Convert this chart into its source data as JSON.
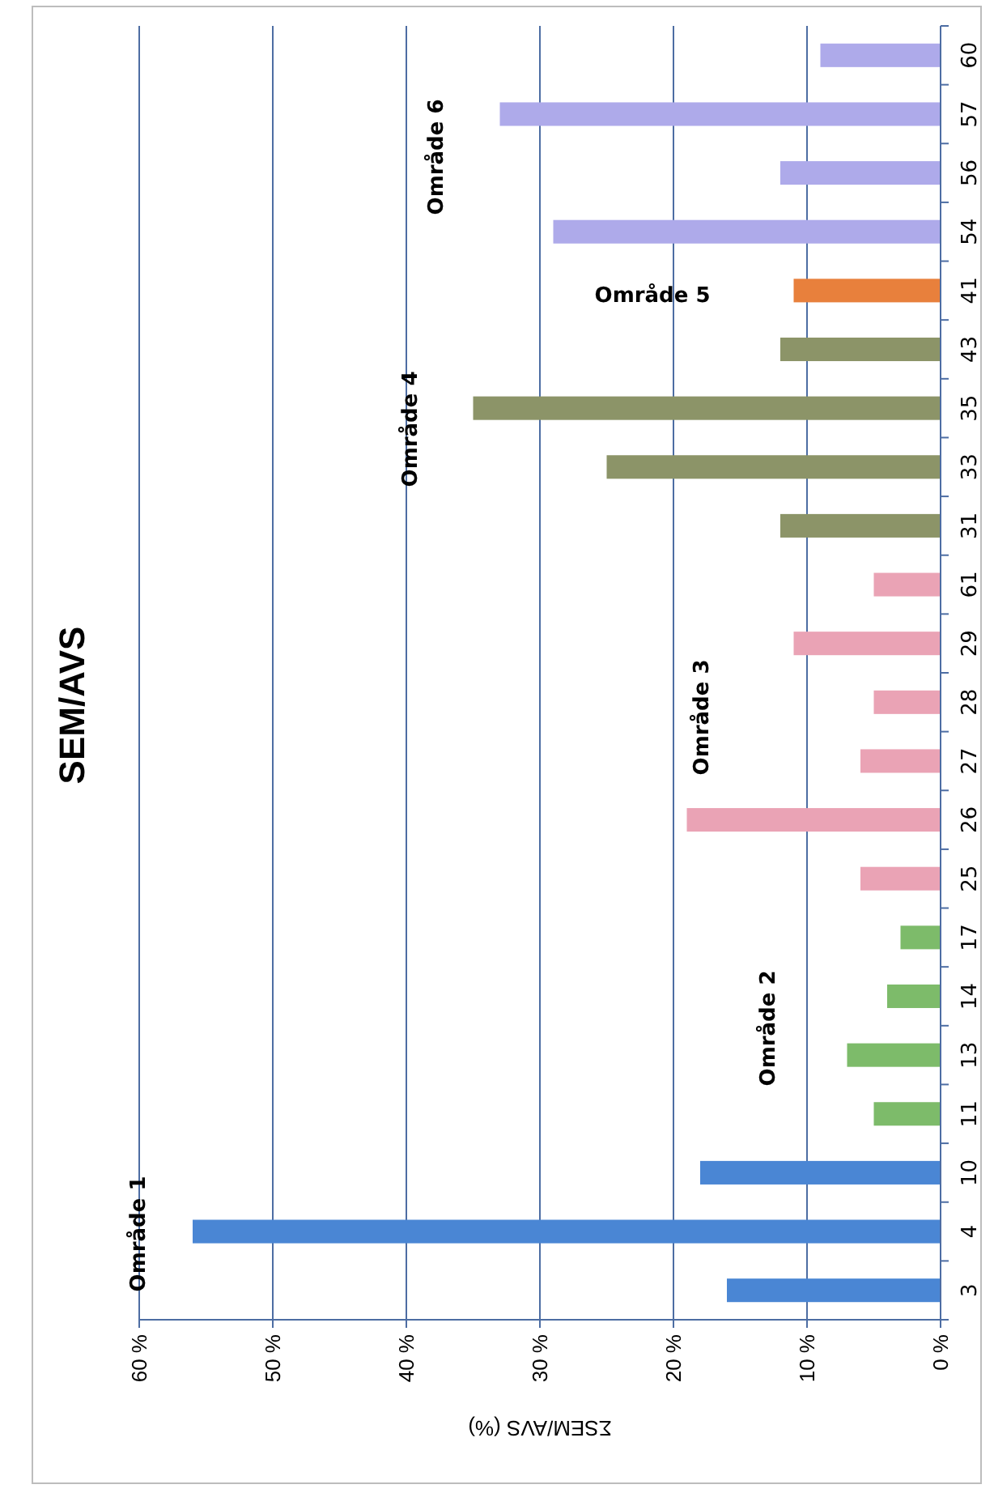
{
  "chart_data": {
    "type": "bar",
    "orientation": "horizontal",
    "title": "SEM/AVS",
    "xlabel": "ΣSEM/AVS (%)",
    "categories": [
      "60",
      "57",
      "56",
      "54",
      "41",
      "43",
      "35",
      "33",
      "31",
      "61",
      "29",
      "28",
      "27",
      "26",
      "25",
      "17",
      "14",
      "13",
      "11",
      "10",
      "4",
      "3"
    ],
    "values": [
      9,
      33,
      12,
      29,
      11,
      12,
      35,
      25,
      12,
      5,
      11,
      5,
      6,
      19,
      6,
      3,
      4,
      7,
      5,
      18,
      56,
      16
    ],
    "colors": [
      "#aeaaea",
      "#aeaaea",
      "#aeaaea",
      "#aeaaea",
      "#e8803c",
      "#8c9468",
      "#8c9468",
      "#8c9468",
      "#8c9468",
      "#eaa3b5",
      "#eaa3b5",
      "#eaa3b5",
      "#eaa3b5",
      "#eaa3b5",
      "#eaa3b5",
      "#7dbb6a",
      "#7dbb6a",
      "#7dbb6a",
      "#7dbb6a",
      "#4a86d4",
      "#4a86d4",
      "#4a86d4"
    ],
    "xlim": [
      60,
      0
    ],
    "xticks": [
      {
        "value": 60,
        "label": "60 %"
      },
      {
        "value": 50,
        "label": "50 %"
      },
      {
        "value": 40,
        "label": "40 %"
      },
      {
        "value": 30,
        "label": "30 %"
      },
      {
        "value": 20,
        "label": "20 %"
      },
      {
        "value": 10,
        "label": "10 %"
      },
      {
        "value": 0,
        "label": "0 %"
      }
    ],
    "grid": "x",
    "annotations": [
      "Område 1",
      "Område 2",
      "Område 3",
      "Område 4",
      "Område 5",
      "Område 6"
    ]
  }
}
